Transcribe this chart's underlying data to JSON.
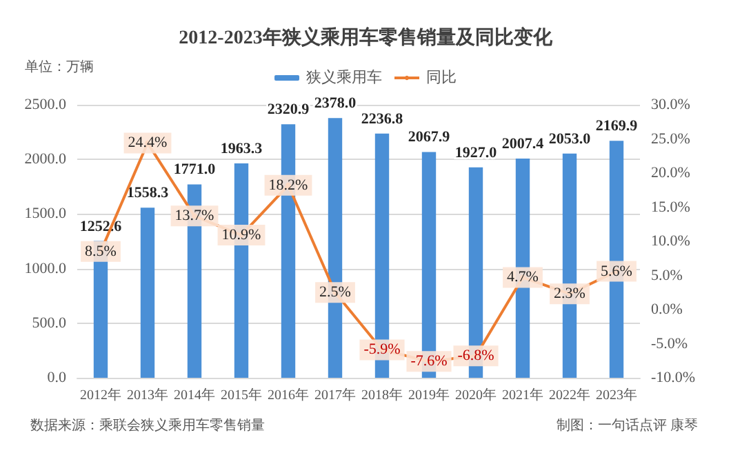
{
  "chart_data": {
    "type": "bar",
    "title": "2012-2023年狭义乘用车零售销量及同比变化",
    "categories": [
      "2012年",
      "2013年",
      "2014年",
      "2015年",
      "2016年",
      "2017年",
      "2018年",
      "2019年",
      "2020年",
      "2021年",
      "2022年",
      "2023年"
    ],
    "series": [
      {
        "name": "狭义乘用车",
        "color": "#4a8fd6",
        "values": [
          1252.6,
          1558.3,
          1771.0,
          1963.3,
          2320.9,
          2378.0,
          2236.8,
          2067.9,
          1927.0,
          2007.4,
          2053.0,
          2169.9
        ],
        "value_labels": [
          "1252.6",
          "1558.3",
          "1771.0",
          "1963.3",
          "2320.9",
          "2378.0",
          "2236.8",
          "2067.9",
          "1927.0",
          "2007.4",
          "2053.0",
          "2169.9"
        ]
      },
      {
        "name": "同比",
        "type": "line",
        "axis": "y2",
        "color": "#ed7d31",
        "values": [
          8.5,
          24.4,
          13.7,
          10.9,
          18.2,
          2.5,
          -5.9,
          -7.6,
          -6.8,
          4.7,
          2.3,
          5.6
        ],
        "value_labels": [
          "8.5%",
          "24.4%",
          "13.7%",
          "10.9%",
          "18.2%",
          "2.5%",
          "-5.9%",
          "-7.6%",
          "-6.8%",
          "4.7%",
          "2.3%",
          "5.6%"
        ]
      }
    ],
    "ylim": [
      0,
      2500
    ],
    "yticks": [
      {
        "value": 0,
        "label": "0.0"
      },
      {
        "value": 500,
        "label": "500.0"
      },
      {
        "value": 1000,
        "label": "1000.0"
      },
      {
        "value": 1500,
        "label": "1500.0"
      },
      {
        "value": 2000,
        "label": "2000.0"
      },
      {
        "value": 2500,
        "label": "2500.0"
      }
    ],
    "y2lim": [
      -10,
      30
    ],
    "y2ticks": [
      {
        "value": -10,
        "label": "-10.0%"
      },
      {
        "value": -5,
        "label": "-5.0%"
      },
      {
        "value": 0,
        "label": "0.0%"
      },
      {
        "value": 5,
        "label": "5.0%"
      },
      {
        "value": 10,
        "label": "10.0%"
      },
      {
        "value": 15,
        "label": "15.0%"
      },
      {
        "value": 20,
        "label": "20.0%"
      },
      {
        "value": 25,
        "label": "25.0%"
      },
      {
        "value": 30,
        "label": "30.0%"
      }
    ],
    "grid": "y",
    "legend": "top",
    "marker": "circle",
    "line_style": "solid",
    "annotations": [
      "单位：万辆",
      "数据来源：乘联会狭义乘用车零售销量",
      "制图：一句话点评 康琴"
    ]
  }
}
